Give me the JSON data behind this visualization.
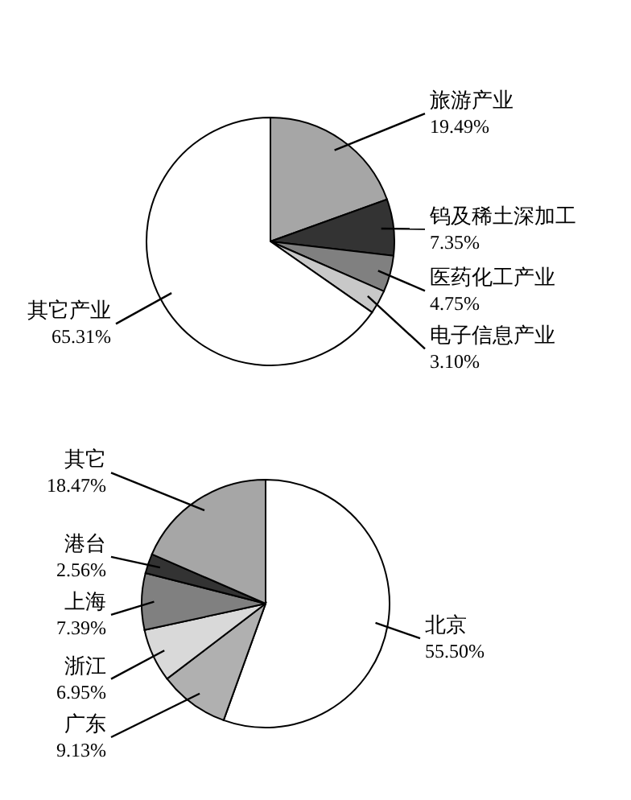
{
  "chart_data": [
    {
      "type": "pie",
      "categories": [
        "旅游产业",
        "钨及稀土深加工",
        "医药化工产业",
        "电子信息产业",
        "其它产业"
      ],
      "values": [
        19.49,
        7.35,
        4.75,
        3.1,
        65.31
      ],
      "value_labels": [
        "19.49%",
        "7.35%",
        "4.75%",
        "3.10%",
        "65.31%"
      ],
      "colors": [
        "#a6a6a6",
        "#333333",
        "#808080",
        "#c8c8c8",
        "#ffffff"
      ]
    },
    {
      "type": "pie",
      "categories": [
        "北京",
        "广东",
        "浙江",
        "上海",
        "港台",
        "其它"
      ],
      "values": [
        55.5,
        9.13,
        6.95,
        7.39,
        2.56,
        18.47
      ],
      "value_labels": [
        "55.50%",
        "9.13%",
        "6.95%",
        "7.39%",
        "2.56%",
        "18.47%"
      ],
      "colors": [
        "#ffffff",
        "#b0b0b0",
        "#d9d9d9",
        "#808080",
        "#333333",
        "#a6a6a6"
      ]
    }
  ]
}
